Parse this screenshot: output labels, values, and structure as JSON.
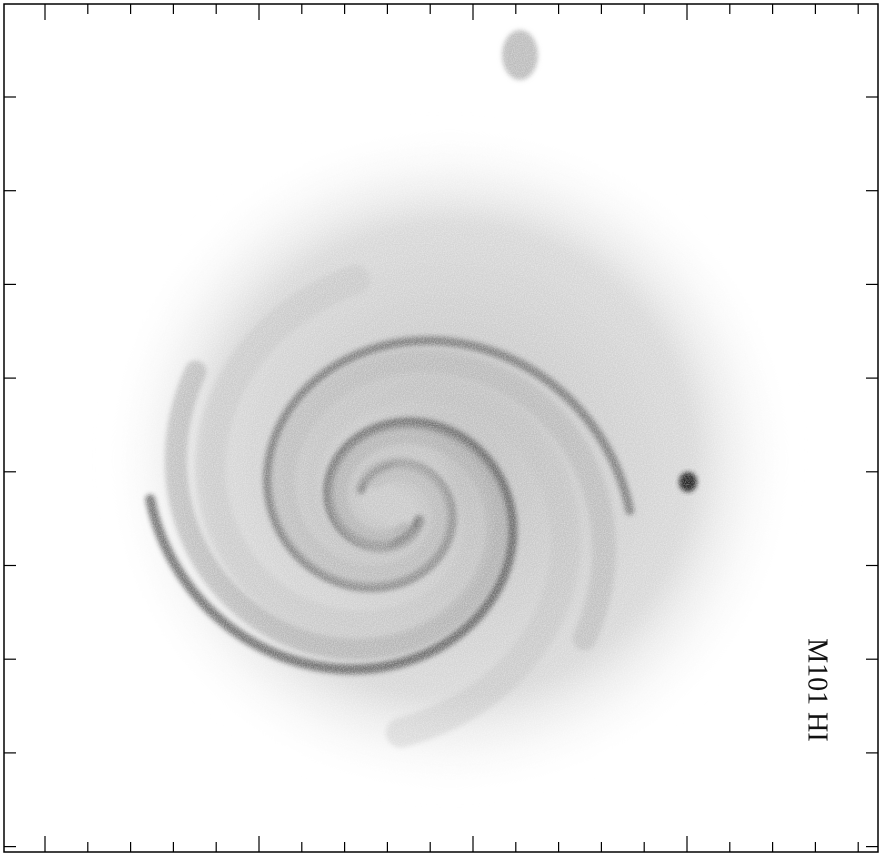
{
  "label": "M101 HI"
}
